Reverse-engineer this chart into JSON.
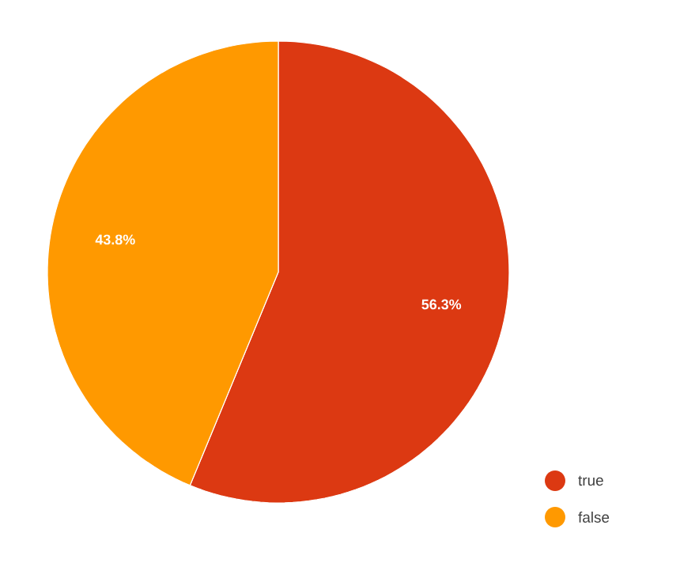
{
  "chart_data": {
    "type": "pie",
    "categories": [
      "true",
      "false"
    ],
    "values": [
      56.3,
      43.8
    ],
    "colors": [
      "#dc3912",
      "#ff9900"
    ],
    "value_labels": [
      "56.3%",
      "43.8%"
    ],
    "legend": "bottom right"
  }
}
